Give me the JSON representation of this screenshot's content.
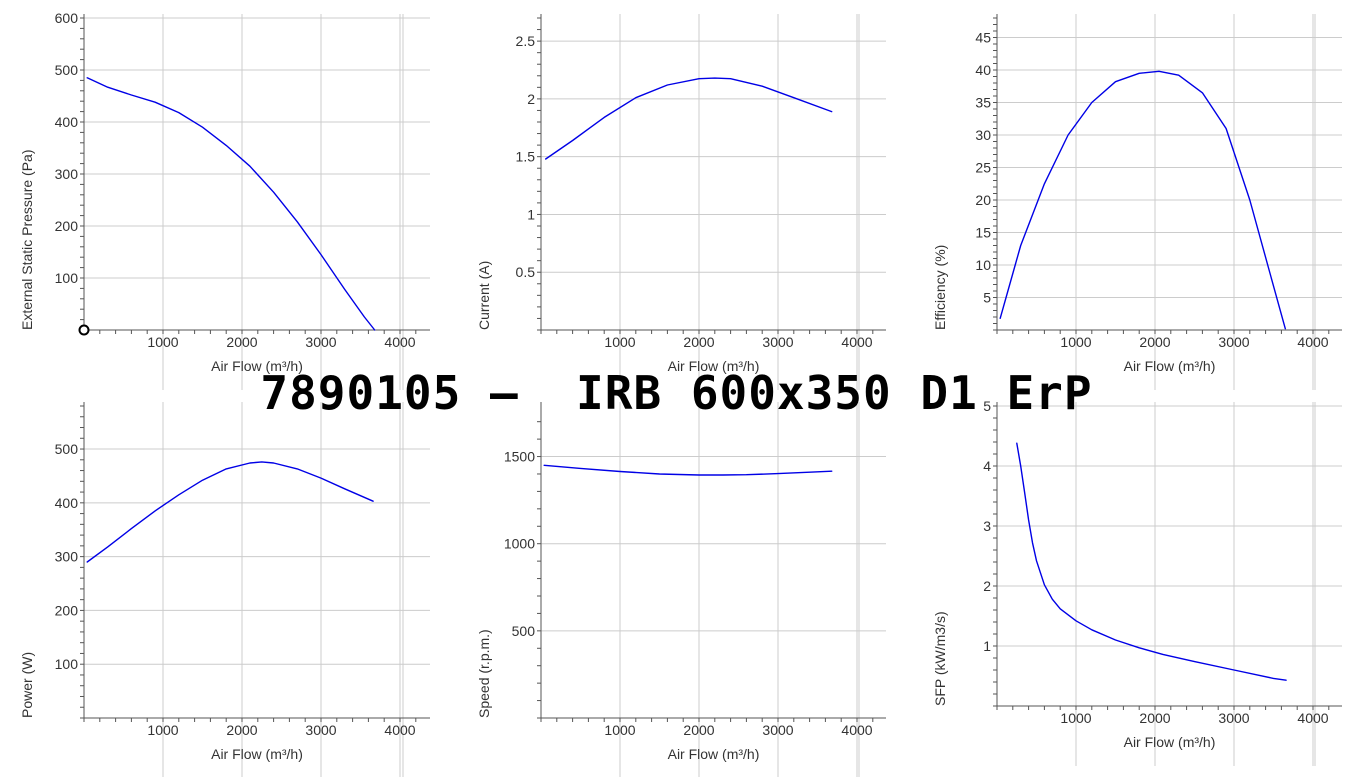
{
  "title": "7890105 –  IRB 600x350 D1 ErP",
  "colors": {
    "curve": "#0000e6",
    "grid": "#cccccc",
    "axis": "#555555",
    "text": "#333333"
  },
  "marker": {
    "chart": 0,
    "x": 0,
    "y": 0
  },
  "chart_data": [
    {
      "type": "line",
      "xlabel": "Air Flow (m³/h)",
      "ylabel": "External Static Pressure (Pa)",
      "xlim": [
        0,
        4300
      ],
      "ylim": [
        0,
        600
      ],
      "xticks": [
        1000,
        2000,
        3000,
        4000
      ],
      "yticks": [
        100,
        200,
        300,
        400,
        500,
        600
      ],
      "grid": true,
      "x": [
        40,
        300,
        600,
        900,
        1200,
        1500,
        1800,
        2100,
        2400,
        2700,
        3000,
        3300,
        3550,
        3680
      ],
      "y": [
        485,
        467,
        452,
        438,
        418,
        390,
        355,
        315,
        265,
        208,
        145,
        78,
        25,
        0
      ]
    },
    {
      "type": "line",
      "xlabel": "Air Flow (m³/h)",
      "ylabel": "Current (A)",
      "xlim": [
        0,
        4300
      ],
      "ylim": [
        0,
        2.7
      ],
      "xticks": [
        1000,
        2000,
        3000,
        4000
      ],
      "yticks": [
        0.5,
        1,
        1.5,
        2,
        2.5
      ],
      "ytick_labels": [
        "0.5",
        "1",
        "1.5",
        "2",
        "2.5"
      ],
      "grid": true,
      "x": [
        60,
        400,
        800,
        1200,
        1600,
        2000,
        2200,
        2400,
        2800,
        3200,
        3680
      ],
      "y": [
        1.48,
        1.64,
        1.84,
        2.01,
        2.12,
        2.175,
        2.18,
        2.175,
        2.11,
        2.01,
        1.89
      ]
    },
    {
      "type": "line",
      "xlabel": "Air Flow (m³/h)",
      "ylabel": "Efficiency (%)",
      "xlim": [
        0,
        4300
      ],
      "ylim": [
        0,
        48
      ],
      "xticks": [
        1000,
        2000,
        3000,
        4000
      ],
      "yticks": [
        5,
        10,
        15,
        20,
        25,
        30,
        35,
        40,
        45
      ],
      "grid": true,
      "x": [
        40,
        300,
        600,
        900,
        1200,
        1500,
        1800,
        2050,
        2300,
        2600,
        2900,
        3200,
        3450,
        3650
      ],
      "y": [
        1.8,
        13,
        22.5,
        30,
        35,
        38.2,
        39.5,
        39.8,
        39.2,
        36.5,
        31,
        20,
        9,
        0.2
      ]
    },
    {
      "type": "line",
      "xlabel": "Air Flow (m³/h)",
      "ylabel": "Power (W)",
      "xlim": [
        0,
        4300
      ],
      "ylim": [
        0,
        580
      ],
      "xticks": [
        1000,
        2000,
        3000,
        4000
      ],
      "yticks": [
        100,
        200,
        300,
        400,
        500
      ],
      "grid": true,
      "x": [
        40,
        300,
        600,
        900,
        1200,
        1500,
        1800,
        2100,
        2250,
        2400,
        2700,
        3000,
        3300,
        3660
      ],
      "y": [
        290,
        318,
        352,
        385,
        415,
        442,
        463,
        474,
        476,
        474,
        463,
        446,
        426,
        403
      ]
    },
    {
      "type": "line",
      "xlabel": "Air Flow (m³/h)",
      "ylabel": "Speed (r.p.m.)",
      "xlim": [
        0,
        4300
      ],
      "ylim": [
        0,
        1790
      ],
      "xticks": [
        1000,
        2000,
        3000,
        4000
      ],
      "yticks": [
        500,
        1000,
        1500
      ],
      "grid": true,
      "x": [
        40,
        500,
        1000,
        1500,
        2000,
        2300,
        2600,
        3000,
        3400,
        3680
      ],
      "y": [
        1450,
        1432,
        1414,
        1400,
        1394,
        1394,
        1396,
        1402,
        1410,
        1416
      ]
    },
    {
      "type": "line",
      "xlabel": "Air Flow (m³/h)",
      "ylabel": "SFP (kW/m3/s)",
      "xlim": [
        0,
        4300
      ],
      "ylim": [
        0,
        5
      ],
      "xticks": [
        1000,
        2000,
        3000,
        4000
      ],
      "yticks": [
        1,
        2,
        3,
        4,
        5
      ],
      "grid": true,
      "x": [
        250,
        300,
        350,
        400,
        450,
        500,
        600,
        700,
        800,
        1000,
        1200,
        1500,
        1800,
        2100,
        2500,
        3000,
        3500,
        3660
      ],
      "y": [
        4.38,
        4.0,
        3.55,
        3.1,
        2.72,
        2.42,
        2.02,
        1.78,
        1.62,
        1.42,
        1.27,
        1.1,
        0.97,
        0.86,
        0.74,
        0.6,
        0.46,
        0.43
      ]
    }
  ]
}
